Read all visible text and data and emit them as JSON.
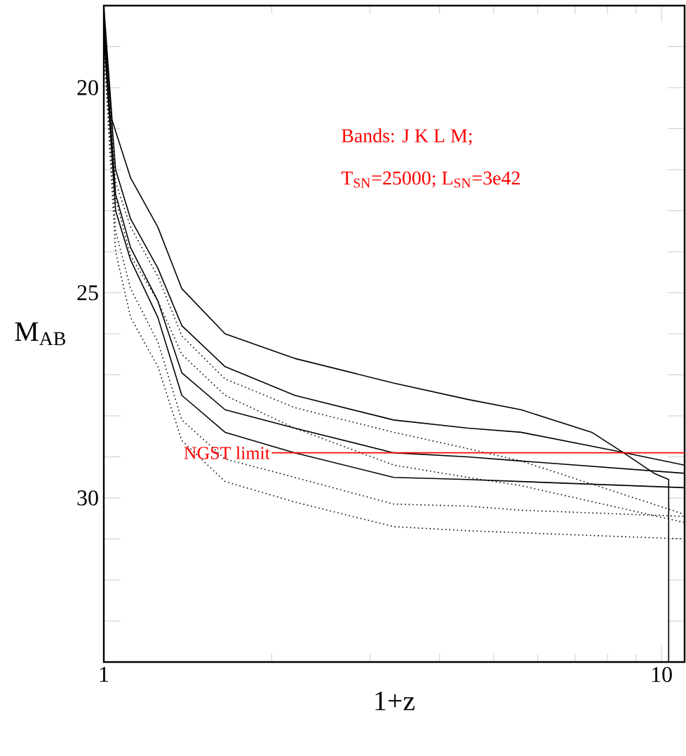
{
  "chart_data": {
    "type": "line",
    "xlabel": "1+z",
    "ylabel": "M$_{AB}$",
    "log": "x",
    "xlim": [
      1,
      11
    ],
    "ylim": [
      34,
      18
    ],
    "xticks": [
      1,
      10
    ],
    "yticks": [
      {
        "value": 18,
        "label": null
      },
      {
        "value": 19,
        "label": null
      },
      20,
      {
        "value": 21,
        "label": null
      },
      {
        "value": 22,
        "label": null
      },
      {
        "value": 23,
        "label": null
      },
      {
        "value": 24,
        "label": null
      },
      25,
      {
        "value": 26,
        "label": null
      },
      {
        "value": 27,
        "label": null
      },
      {
        "value": 28,
        "label": null
      },
      {
        "value": 29,
        "label": null
      },
      30,
      {
        "value": 31,
        "label": null
      },
      {
        "value": 32,
        "label": null
      },
      {
        "value": 33,
        "label": null
      },
      {
        "value": 34,
        "label": null
      }
    ],
    "annotations": [
      "Bands:  J K L M;",
      "T$_{SN}$=25000; L$_{SN}$=3e42"
    ],
    "series": [
      {
        "color": "#000000",
        "line_style": "solid",
        "x": [
          1,
          1.035,
          1.117,
          1.25,
          1.38,
          1.65,
          2.2,
          3.31,
          4.5,
          5.6,
          7.5,
          8.55,
          9.7,
          10.3,
          10.3
        ],
        "values": [
          18.0,
          20.8,
          22.2,
          23.4,
          24.9,
          26.0,
          26.6,
          27.2,
          27.6,
          27.85,
          28.4,
          28.9,
          29.4,
          29.55,
          34
        ]
      },
      {
        "color": "#000000",
        "line_style": "solid",
        "x": [
          1,
          1.05,
          1.117,
          1.25,
          1.38,
          1.65,
          2.2,
          3.31,
          4.5,
          5.6,
          8.25,
          11
        ],
        "values": [
          18.3,
          22.0,
          23.2,
          24.4,
          25.8,
          26.8,
          27.5,
          28.1,
          28.3,
          28.4,
          28.85,
          29.2
        ]
      },
      {
        "color": "#000000",
        "line_style": "solid",
        "x": [
          1,
          1.05,
          1.117,
          1.25,
          1.38,
          1.65,
          2.2,
          3.31,
          4.5,
          5.6,
          11
        ],
        "values": [
          18.5,
          22.6,
          23.9,
          25.2,
          26.95,
          27.85,
          28.3,
          28.9,
          29.0,
          29.1,
          29.4
        ]
      },
      {
        "color": "#000000",
        "line_style": "solid",
        "x": [
          1,
          1.05,
          1.117,
          1.25,
          1.38,
          1.65,
          2.2,
          3.31,
          4.5,
          5.6,
          11
        ],
        "values": [
          18.7,
          23.0,
          24.2,
          25.6,
          27.5,
          28.4,
          28.9,
          29.5,
          29.55,
          29.6,
          29.75
        ]
      },
      {
        "color": "#000000",
        "line_style": "dotted",
        "x": [
          1,
          1.05,
          1.117,
          1.25,
          1.38,
          1.65,
          2.2,
          3.31,
          4.5,
          5.6,
          11
        ],
        "values": [
          18.4,
          22.3,
          23.4,
          24.6,
          26.05,
          27.1,
          27.8,
          28.4,
          28.8,
          29.1,
          30.4
        ]
      },
      {
        "color": "#000000",
        "line_style": "dotted",
        "x": [
          1,
          1.05,
          1.117,
          1.25,
          1.38,
          1.65,
          2.2,
          3.31,
          4.5,
          5.6,
          11
        ],
        "values": [
          18.6,
          22.7,
          24.1,
          25.2,
          26.5,
          27.5,
          28.3,
          29.2,
          29.5,
          29.7,
          30.6
        ]
      },
      {
        "color": "#000000",
        "line_style": "dotted",
        "x": [
          1,
          1.05,
          1.117,
          1.25,
          1.38,
          1.65,
          2.2,
          3.31,
          4.5,
          5.6,
          11
        ],
        "values": [
          18.8,
          23.5,
          24.9,
          26.2,
          28.1,
          29.05,
          29.5,
          30.15,
          30.2,
          30.3,
          30.45
        ]
      },
      {
        "color": "#000000",
        "line_style": "dotted",
        "x": [
          1,
          1.05,
          1.117,
          1.25,
          1.38,
          1.65,
          2.2,
          3.31,
          4.5,
          5.6,
          11
        ],
        "values": [
          19.0,
          24.0,
          25.6,
          26.8,
          28.6,
          29.6,
          30.1,
          30.7,
          30.8,
          30.85,
          31.0
        ]
      },
      {
        "name": "NGST limit",
        "color": "#ff0000",
        "line_style": "solid",
        "x": [
          2,
          11
        ],
        "values": [
          28.9,
          28.9
        ]
      }
    ]
  }
}
